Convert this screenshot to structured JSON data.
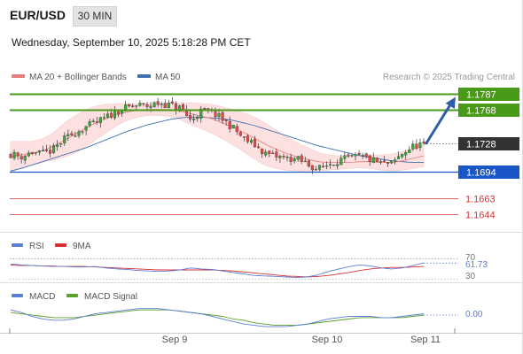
{
  "header": {
    "symbol": "EUR/USD",
    "timeframe": "30 MIN",
    "datetime": "Wednesday, September 10, 2025 5:18:28 PM CET"
  },
  "colors": {
    "bull": "#3aa53a",
    "bear": "#e04848",
    "candle_wick": "#333333",
    "ma20": "#e87a7a",
    "bands_fill": "#fde0e0",
    "ma50": "#3f6fb5",
    "target_green": "#4a9a1a",
    "support_blue": "#1a56c8",
    "support_red": "#e06a6a",
    "last_price_box": "#333333",
    "arrow": "#2c5fa8",
    "rsi": "#5c7ed6",
    "rsi_ma": "#d63030",
    "macd": "#5c7ed6",
    "macd_signal": "#5aa02c"
  },
  "chart_data": [
    {
      "type": "candlestick",
      "title": "EUR/USD",
      "legend": [
        {
          "label": "MA 20 + Bollinger Bands",
          "color": "#e87a7a"
        },
        {
          "label": "MA 50",
          "color": "#3f6fb5"
        }
      ],
      "watermark": "Research © 2025 Trading Central",
      "x_ticks": [
        "Sep 9",
        "Sep 10",
        "Sep 11"
      ],
      "ylim": [
        1.163,
        1.1795
      ],
      "price_levels": [
        {
          "value": 1.1787,
          "label": "1.1787",
          "style": "green-box"
        },
        {
          "value": 1.1768,
          "label": "1.1768",
          "style": "green-box"
        },
        {
          "value": 1.1728,
          "label": "1.1728",
          "style": "last-price"
        },
        {
          "value": 1.1694,
          "label": "1.1694",
          "style": "blue-box"
        },
        {
          "value": 1.1663,
          "label": "1.1663",
          "style": "red-text"
        },
        {
          "value": 1.1644,
          "label": "1.1644",
          "style": "red-text"
        }
      ],
      "last_price": 1.1728,
      "arrow": {
        "from": 1.1728,
        "to": 1.1787
      },
      "close_path": [
        1.1715,
        1.1712,
        1.1717,
        1.1715,
        1.172,
        1.1732,
        1.174,
        1.1747,
        1.1752,
        1.1758,
        1.1766,
        1.177,
        1.1773,
        1.1772,
        1.1776,
        1.1773,
        1.177,
        1.1755,
        1.1766,
        1.1765,
        1.1756,
        1.1746,
        1.1733,
        1.1726,
        1.1716,
        1.1712,
        1.171,
        1.1709,
        1.1703,
        1.1697,
        1.1703,
        1.1708,
        1.171,
        1.1712,
        1.1708,
        1.1704,
        1.1703,
        1.1716,
        1.1724,
        1.1728
      ],
      "ma20_path": [
        1.1712,
        1.1714,
        1.1716,
        1.1719,
        1.1724,
        1.1731,
        1.1738,
        1.1745,
        1.1752,
        1.1757,
        1.1762,
        1.1765,
        1.1767,
        1.1768,
        1.1768,
        1.1768,
        1.1766,
        1.1763,
        1.176,
        1.1757,
        1.1752,
        1.1747,
        1.1741,
        1.1734,
        1.1727,
        1.1721,
        1.1716,
        1.1712,
        1.1709,
        1.1706,
        1.1705,
        1.1705,
        1.1705,
        1.1706,
        1.1706,
        1.1705,
        1.1705,
        1.1707,
        1.171,
        1.1713
      ],
      "band_width_path": [
        0.0018,
        0.0016,
        0.0014,
        0.0014,
        0.0016,
        0.002,
        0.0022,
        0.0022,
        0.002,
        0.0017,
        0.0013,
        0.001,
        0.0008,
        0.0007,
        0.0007,
        0.0008,
        0.001,
        0.0013,
        0.0015,
        0.0017,
        0.0019,
        0.0021,
        0.0023,
        0.0025,
        0.0025,
        0.0023,
        0.002,
        0.0017,
        0.0014,
        0.0011,
        0.0009,
        0.0008,
        0.0007,
        0.0007,
        0.0008,
        0.0009,
        0.001,
        0.0011,
        0.0012,
        0.0013
      ],
      "ma50_path": [
        1.1695,
        1.1698,
        1.1702,
        1.1706,
        1.171,
        1.1714,
        1.1718,
        1.1722,
        1.1727,
        1.1732,
        1.1737,
        1.1742,
        1.1746,
        1.175,
        1.1753,
        1.1756,
        1.1758,
        1.1759,
        1.1759,
        1.1758,
        1.1757,
        1.1755,
        1.1752,
        1.1749,
        1.1745,
        1.1741,
        1.1737,
        1.1733,
        1.1729,
        1.1725,
        1.1722,
        1.1719,
        1.1716,
        1.1713,
        1.1711,
        1.1709,
        1.1707,
        1.1706,
        1.1705,
        1.1705
      ]
    },
    {
      "type": "line",
      "legend": [
        {
          "label": "RSI",
          "color": "#5c7ed6"
        },
        {
          "label": "9MA",
          "color": "#d63030"
        }
      ],
      "ylim": [
        25,
        80
      ],
      "ref_levels": [
        {
          "value": 70,
          "label": "70"
        },
        {
          "value": 30,
          "label": "30"
        }
      ],
      "current_value": "61.73",
      "series": [
        {
          "name": "RSI",
          "values": [
            60,
            58,
            57,
            56,
            55,
            55,
            54,
            54,
            55,
            52,
            50,
            49,
            47,
            46,
            45,
            46,
            48,
            52,
            50,
            49,
            46,
            43,
            40,
            37,
            36,
            35,
            34,
            33,
            34,
            38,
            45,
            50,
            55,
            58,
            56,
            52,
            50,
            52,
            57,
            62
          ]
        },
        {
          "name": "9MA",
          "values": [
            58,
            57,
            57,
            56,
            56,
            55,
            55,
            55,
            54,
            53,
            52,
            51,
            50,
            49,
            48,
            48,
            48,
            48,
            48,
            48,
            47,
            46,
            44,
            42,
            40,
            38,
            36,
            35,
            34,
            35,
            37,
            40,
            43,
            47,
            50,
            52,
            53,
            53,
            54,
            55
          ]
        }
      ]
    },
    {
      "type": "line",
      "legend": [
        {
          "label": "MACD",
          "color": "#5c7ed6"
        },
        {
          "label": "MACD Signal",
          "color": "#5aa02c"
        }
      ],
      "ylim": [
        -0.0011,
        0.0011
      ],
      "current_value": "0.00",
      "series": [
        {
          "name": "MACD",
          "values": [
            0.0004,
            0.0002,
            -0.0001,
            -0.0003,
            -0.0004,
            -0.0004,
            -0.0003,
            -0.0001,
            0.0001,
            0.0002,
            0.0003,
            0.0004,
            0.0005,
            0.0005,
            0.0005,
            0.0004,
            0.0003,
            0.0002,
            0.0001,
            -0.0001,
            -0.0003,
            -0.0005,
            -0.0007,
            -0.0008,
            -0.0009,
            -0.0009,
            -0.0009,
            -0.0008,
            -0.0007,
            -0.0005,
            -0.0003,
            -0.0002,
            -0.0001,
            -0.0001,
            -0.0001,
            -0.0002,
            -0.0002,
            -0.0001,
            0.0,
            0.0001
          ]
        },
        {
          "name": "MACD Signal",
          "values": [
            0.0002,
            0.0001,
            0.0,
            -0.0001,
            -0.0002,
            -0.0002,
            -0.0002,
            -0.0001,
            0.0,
            0.0001,
            0.0002,
            0.0003,
            0.0004,
            0.0004,
            0.0004,
            0.0004,
            0.0003,
            0.0002,
            0.0001,
            0.0,
            -0.0001,
            -0.0003,
            -0.0004,
            -0.0006,
            -0.0007,
            -0.0008,
            -0.0008,
            -0.0008,
            -0.0007,
            -0.0006,
            -0.0005,
            -0.0004,
            -0.0003,
            -0.0002,
            -0.0002,
            -0.0002,
            -0.0002,
            -0.0002,
            -0.0001,
            0.0
          ]
        }
      ]
    }
  ]
}
